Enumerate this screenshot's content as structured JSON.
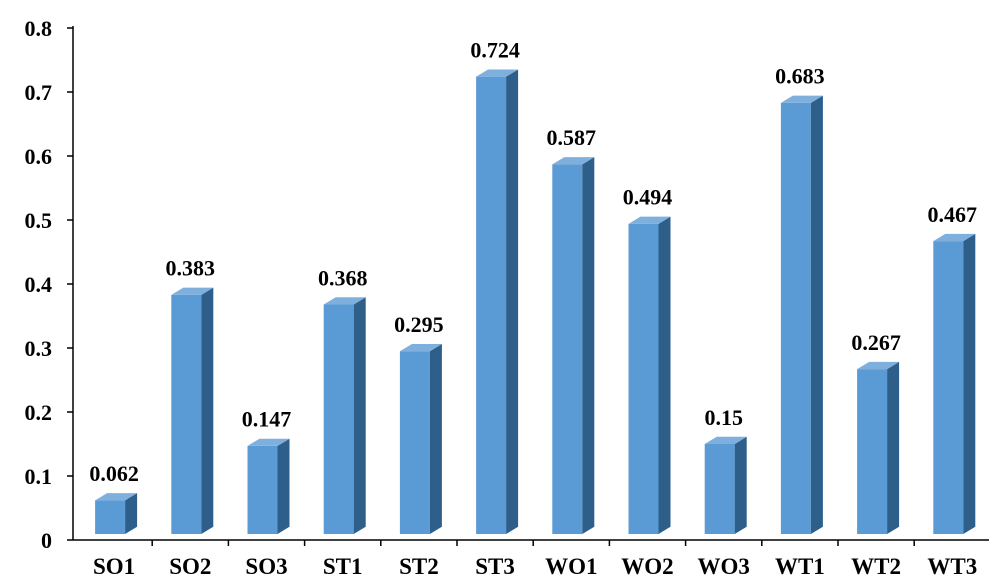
{
  "chart_data": {
    "type": "bar",
    "title": "",
    "xlabel": "",
    "ylabel": "",
    "ylim": [
      0,
      0.8
    ],
    "yticks": [
      "0",
      "0.1",
      "0.2",
      "0.3",
      "0.4",
      "0.5",
      "0.6",
      "0.7",
      "0.8"
    ],
    "categories": [
      "SO1",
      "SO2",
      "SO3",
      "ST1",
      "ST2",
      "ST3",
      "WO1",
      "WO2",
      "WO3",
      "WT1",
      "WT2",
      "WT3"
    ],
    "values": [
      0.062,
      0.383,
      0.147,
      0.368,
      0.295,
      0.724,
      0.587,
      0.494,
      0.15,
      0.683,
      0.267,
      0.467
    ],
    "value_labels": [
      "0.062",
      "0.383",
      "0.147",
      "0.368",
      "0.295",
      "0.724",
      "0.587",
      "0.494",
      "0.15",
      "0.683",
      "0.267",
      "0.467"
    ],
    "grid": false,
    "legend": "none",
    "style": "3d-column",
    "colors": {
      "bar_front": "#5B9BD5",
      "bar_side": "#2E5F8A",
      "bar_top": "#7FB0DD"
    }
  }
}
